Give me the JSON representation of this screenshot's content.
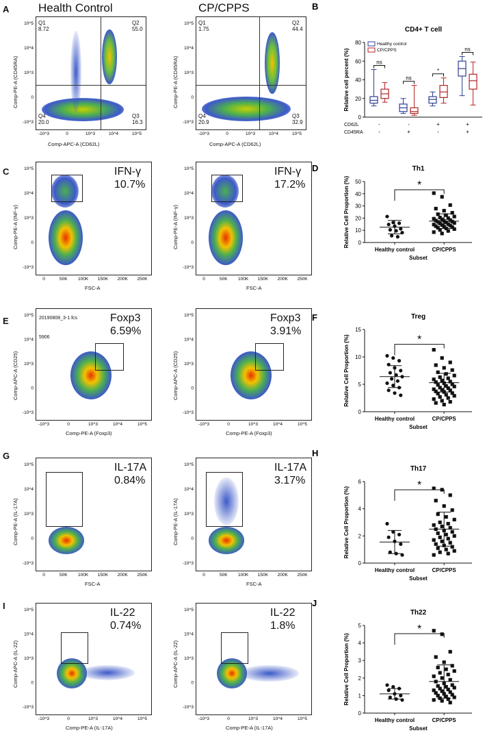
{
  "panels": {
    "A": {
      "letter": "A",
      "col_left": "Health Control",
      "col_right": "CP/CPPS",
      "ylabel": "Comp-PE-A (CD45RA)",
      "xlabel": "Comp-APC-A (CD62L)",
      "left": {
        "q1": "Q1",
        "q1v": "8.72",
        "q2": "Q2",
        "q2v": "55.0",
        "q3": "Q3",
        "q3v": "16.3",
        "q4": "Q4",
        "q4v": "20.0"
      },
      "right": {
        "q1": "Q1",
        "q1v": "1.75",
        "q2": "Q2",
        "q2v": "44.4",
        "q3": "Q3",
        "q3v": "32.9",
        "q4": "Q4",
        "q4v": "20.9"
      }
    },
    "C": {
      "letter": "C",
      "ylabel": "Comp-PE-A (INF-γ)",
      "xlabel": "FSC-A",
      "marker": "IFN-γ",
      "left_val": "10.7%",
      "right_val": "17.2%"
    },
    "E": {
      "letter": "E",
      "ylabel": "Comp-APC-A (CD25)",
      "xlabel": "Comp-PE-A (Foxp3)",
      "marker": "Foxp3",
      "left_val": "6.59%",
      "right_val": "3.91%",
      "file": "20190808_3-1.fcs",
      "count": "5906"
    },
    "G": {
      "letter": "G",
      "ylabel": "Comp-PE-A (IL-17A)",
      "xlabel": "FSC-A",
      "marker": "IL-17A",
      "left_val": "0.84%",
      "right_val": "3.17%"
    },
    "I": {
      "letter": "I",
      "ylabel": "Comp-APC-A (IL-22)",
      "xlabel": "Comp-PE-A (IL-17A)",
      "marker": "IL-22",
      "left_val": "0.74%",
      "right_val": "1.8%"
    }
  },
  "ticks": {
    "log_y": [
      "10^5",
      "10^4",
      "10^3",
      "0",
      "-10^3"
    ],
    "log_x": [
      "-10^3",
      "0",
      "10^3",
      "10^4",
      "10^5"
    ],
    "fsc_x": [
      "0",
      "50K",
      "100K",
      "150K",
      "200K",
      "250K"
    ]
  },
  "colors": {
    "healthy": "#2c3e8f",
    "cpcpps": "#b22222",
    "dots": "#2233bb"
  },
  "chart_data": [
    {
      "panel": "B",
      "type": "box",
      "title": "CD4+ T cell",
      "ylabel": "Relative cell percent (%)",
      "ylim": [
        0,
        80
      ],
      "yticks": [
        0,
        20,
        40,
        60,
        80
      ],
      "row_labels": [
        "CD62L",
        "CD45RA"
      ],
      "groups": [
        {
          "CD62L": "-",
          "CD45RA": "-",
          "sig": "ns"
        },
        {
          "CD62L": "-",
          "CD45RA": "+",
          "sig": "ns"
        },
        {
          "CD62L": "+",
          "CD45RA": "-",
          "sig": "*"
        },
        {
          "CD62L": "+",
          "CD45RA": "+",
          "sig": "ns"
        }
      ],
      "legend": "top-left",
      "series": [
        {
          "name": "Healthy control",
          "color": "#2c3e8f",
          "boxes": [
            {
              "min": 12,
              "q1": 15,
              "median": 18,
              "q3": 22,
              "max": 51
            },
            {
              "min": 4,
              "q1": 6,
              "median": 10,
              "q3": 14,
              "max": 20
            },
            {
              "min": 12,
              "q1": 15,
              "median": 19,
              "q3": 22,
              "max": 27
            },
            {
              "min": 23,
              "q1": 44,
              "median": 52,
              "q3": 60,
              "max": 65
            }
          ]
        },
        {
          "name": "CP/CPPS",
          "color": "#b22222",
          "boxes": [
            {
              "min": 16,
              "q1": 20,
              "median": 25,
              "q3": 30,
              "max": 37
            },
            {
              "min": 2,
              "q1": 4,
              "median": 6,
              "q3": 10,
              "max": 34
            },
            {
              "min": 15,
              "q1": 21,
              "median": 27,
              "q3": 34,
              "max": 42
            },
            {
              "min": 13,
              "q1": 30,
              "median": 39,
              "q3": 46,
              "max": 59
            }
          ]
        }
      ]
    },
    {
      "panel": "D",
      "type": "scatter",
      "title": "Th1",
      "ylabel": "Relative Cell Proportion (%)",
      "xlabel": "Subset",
      "categories": [
        "Healthy control",
        "CP/CPPS"
      ],
      "ylim": [
        0,
        50
      ],
      "yticks": [
        0,
        10,
        20,
        30,
        40,
        50
      ],
      "sig": "*",
      "series": [
        {
          "name": "Healthy control",
          "marker": "circle",
          "mean": 12.6,
          "sd": 5.5,
          "values": [
            21.3,
            16.4,
            15.8,
            14.8,
            13.4,
            11.2,
            10.4,
            9.6,
            8.1,
            5.6,
            4.7
          ]
        },
        {
          "name": "CP/CPPS",
          "marker": "square",
          "mean": 17.5,
          "sd": 6.0,
          "values": [
            40.5,
            37.5,
            30.7,
            27.8,
            26.1,
            24.4,
            23.2,
            22.4,
            21.3,
            20.5,
            20.0,
            19.5,
            19.0,
            18.4,
            18.0,
            17.6,
            17.2,
            16.9,
            16.5,
            16.0,
            15.6,
            15.1,
            14.7,
            14.3,
            13.9,
            13.4,
            13.0,
            12.6,
            12.1,
            11.6,
            11.0,
            10.3,
            9.5,
            8.5,
            7.4
          ]
        }
      ]
    },
    {
      "panel": "F",
      "type": "scatter",
      "title": "Treg",
      "ylabel": "Relative Cell Proportion (%)",
      "xlabel": "Subset",
      "categories": [
        "Healthy control",
        "CP/CPPS"
      ],
      "ylim": [
        0,
        15
      ],
      "yticks": [
        0,
        5,
        10,
        15
      ],
      "sig": "*",
      "series": [
        {
          "name": "Healthy control",
          "marker": "circle",
          "mean": 6.4,
          "sd": 2.0,
          "values": [
            10.2,
            9.8,
            9.3,
            8.6,
            8.0,
            7.5,
            7.1,
            6.7,
            6.4,
            6.0,
            5.6,
            5.2,
            4.8,
            4.4,
            3.9,
            3.4,
            3.0
          ]
        },
        {
          "name": "CP/CPPS",
          "marker": "square",
          "mean": 5.3,
          "sd": 1.7,
          "values": [
            11.3,
            9.8,
            9.0,
            8.5,
            8.0,
            7.6,
            7.2,
            6.9,
            6.6,
            6.3,
            6.1,
            5.9,
            5.7,
            5.5,
            5.4,
            5.2,
            5.0,
            4.9,
            4.7,
            4.6,
            4.4,
            4.3,
            4.1,
            4.0,
            3.9,
            3.7,
            3.6,
            3.4,
            3.3,
            3.1,
            2.9,
            2.7,
            2.5,
            2.3,
            2.0,
            1.8,
            1.6,
            1.3
          ]
        }
      ]
    },
    {
      "panel": "H",
      "type": "scatter",
      "title": "Th17",
      "ylabel": "Relative Cell Proportion (%)",
      "xlabel": "Subset",
      "categories": [
        "Healthy control",
        "CP/CPPS"
      ],
      "ylim": [
        0,
        6
      ],
      "yticks": [
        0,
        2,
        4,
        6
      ],
      "sig": "*",
      "series": [
        {
          "name": "Healthy control",
          "marker": "circle",
          "mean": 1.55,
          "sd": 0.85,
          "values": [
            2.9,
            2.3,
            2.1,
            1.9,
            1.6,
            1.4,
            0.8,
            0.7,
            0.6
          ]
        },
        {
          "name": "CP/CPPS",
          "marker": "square",
          "mean": 2.5,
          "sd": 1.25,
          "values": [
            5.5,
            5.4,
            5.0,
            4.6,
            4.2,
            3.9,
            3.6,
            3.4,
            3.2,
            3.0,
            2.9,
            2.8,
            2.7,
            2.6,
            2.5,
            2.4,
            2.3,
            2.2,
            2.1,
            2.0,
            1.9,
            1.8,
            1.7,
            1.6,
            1.5,
            1.4,
            1.3,
            1.2,
            1.1,
            1.0,
            0.9,
            0.8,
            0.7,
            0.6
          ]
        }
      ]
    },
    {
      "panel": "J",
      "type": "scatter",
      "title": "Th22",
      "ylabel": "Relative Cell Proportion (%)",
      "xlabel": "Subset",
      "categories": [
        "Healthy control",
        "CP/CPPS"
      ],
      "ylim": [
        0,
        5
      ],
      "yticks": [
        0,
        1,
        2,
        3,
        4,
        5
      ],
      "sig": "*",
      "series": [
        {
          "name": "Healthy control",
          "marker": "circle",
          "mean": 1.1,
          "sd": 0.3,
          "values": [
            1.6,
            1.5,
            1.4,
            1.3,
            1.1,
            1.0,
            0.9,
            0.8,
            0.75
          ]
        },
        {
          "name": "CP/CPPS",
          "marker": "square",
          "mean": 1.8,
          "sd": 0.95,
          "values": [
            4.7,
            4.5,
            3.5,
            3.2,
            2.9,
            2.7,
            2.6,
            2.5,
            2.4,
            2.3,
            2.2,
            2.1,
            2.0,
            1.9,
            1.8,
            1.7,
            1.6,
            1.55,
            1.5,
            1.45,
            1.4,
            1.35,
            1.3,
            1.25,
            1.2,
            1.15,
            1.1,
            1.05,
            1.0,
            0.95,
            0.9,
            0.85,
            0.8,
            0.75,
            0.7,
            0.6
          ]
        }
      ]
    }
  ]
}
